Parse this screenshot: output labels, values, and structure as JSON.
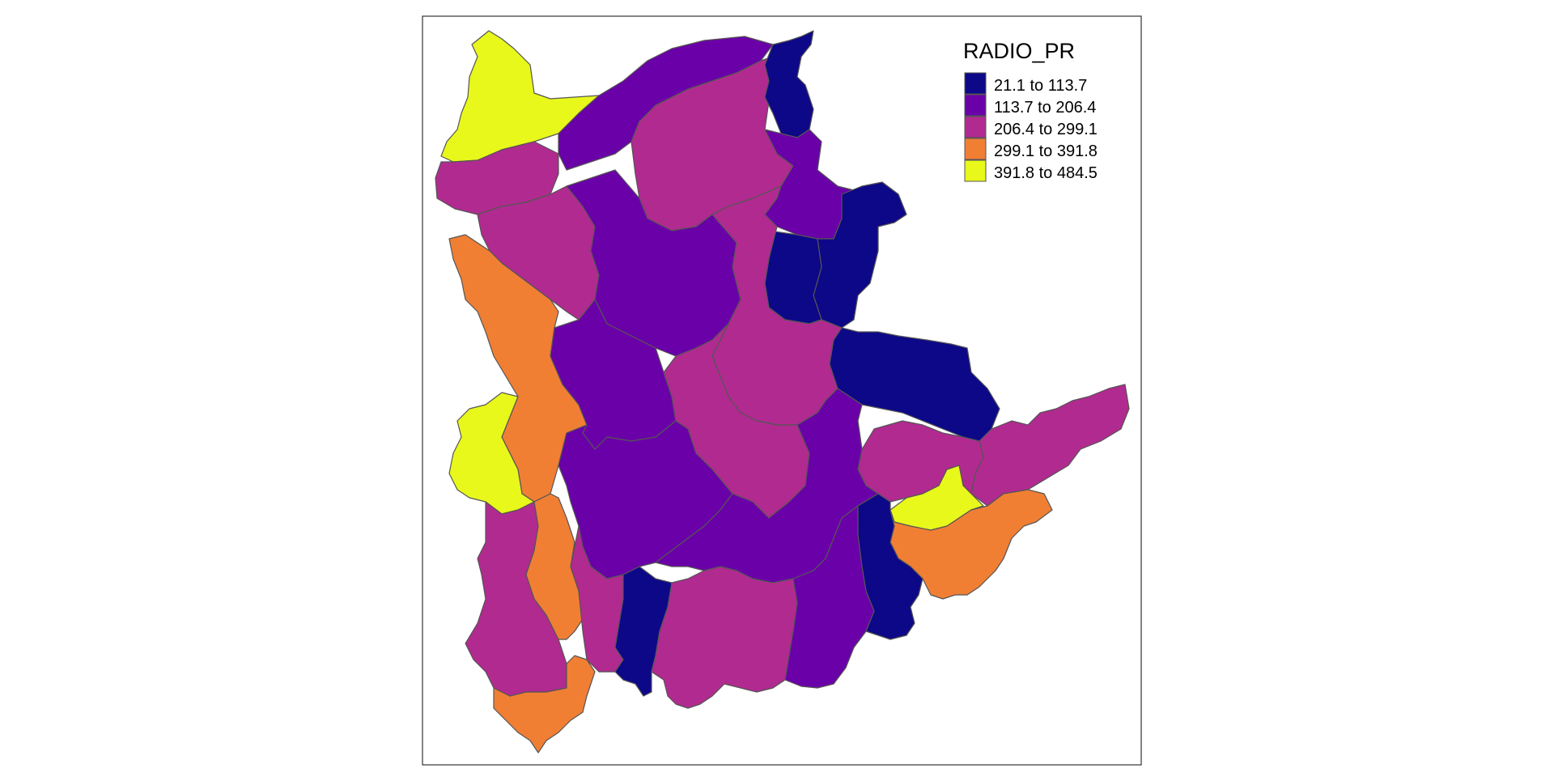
{
  "map": {
    "legend": {
      "title": "RADIO_PR",
      "classes": [
        {
          "label": "21.1 to 113.7",
          "color": "#0d0887"
        },
        {
          "label": "113.7 to 206.4",
          "color": "#6a00a8"
        },
        {
          "label": "206.4 to 299.1",
          "color": "#b12a90"
        },
        {
          "label": "299.1 to 391.8",
          "color": "#f07f34"
        },
        {
          "label": "391.8 to 484.5",
          "color": "#e8f81b"
        }
      ]
    },
    "border_color": "#555555"
  }
}
